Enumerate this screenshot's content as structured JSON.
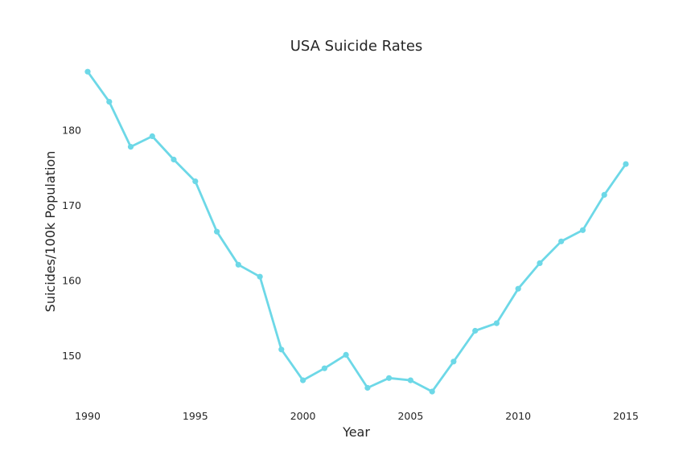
{
  "chart_data": {
    "type": "line",
    "title": "USA Suicide Rates",
    "xlabel": "Year",
    "ylabel": "Suicides/100k Population",
    "xlim": [
      1990,
      2015
    ],
    "ylim": [
      143.5,
      189
    ],
    "xticks": [
      1990,
      1995,
      2000,
      2005,
      2010,
      2015
    ],
    "yticks": [
      150,
      160,
      170,
      180
    ],
    "grid": false,
    "legend": "none",
    "colors": {
      "line": "#6dd8e7",
      "text": "#262626",
      "background": "#ffffff"
    },
    "series": [
      {
        "x": [
          1990,
          1991,
          1992,
          1993,
          1994,
          1995,
          1996,
          1997,
          1998,
          1999,
          2000,
          2001,
          2002,
          2003,
          2004,
          2005,
          2006,
          2007,
          2008,
          2009,
          2010,
          2011,
          2012,
          2013,
          2014,
          2015
        ],
        "y": [
          187.8,
          183.8,
          177.8,
          179.2,
          176.1,
          173.2,
          166.5,
          162.1,
          160.5,
          150.8,
          146.7,
          148.3,
          150.1,
          145.7,
          147.0,
          146.7,
          145.2,
          149.2,
          153.3,
          154.3,
          158.9,
          162.3,
          165.2,
          166.7,
          171.4,
          175.5
        ]
      }
    ]
  }
}
